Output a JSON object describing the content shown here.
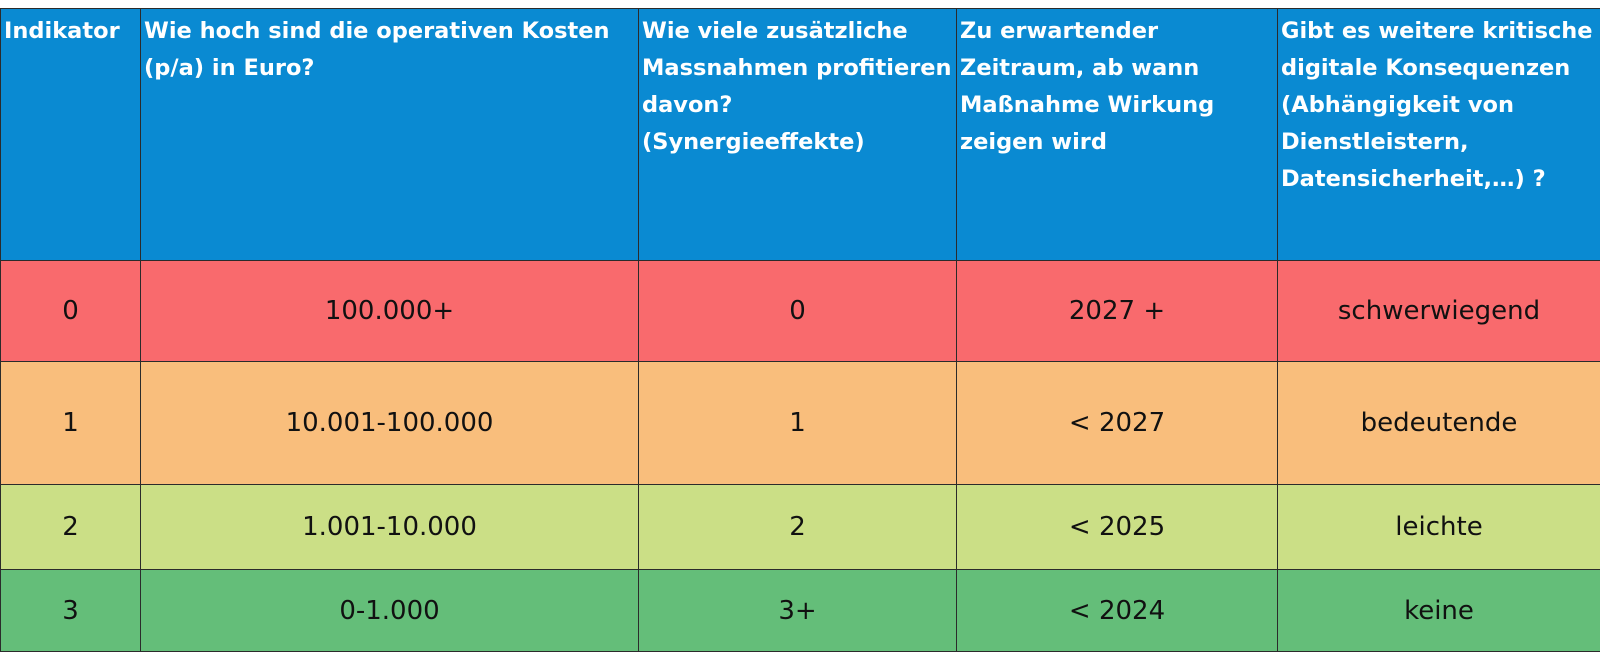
{
  "table": {
    "headers": [
      "Indikator",
      "Wie hoch sind die operativen Kosten (p/a) in Euro?",
      "Wie viele zusätzliche Massnahmen profitieren davon? (Synergieeffekte)",
      "Zu erwartender Zeitraum, ab wann Maßnahme Wirkung zeigen wird",
      "Gibt es weitere kritische digitale Konsequenzen (Abhängigkeit von Dienstleistern, Datensicherheit,…) ?"
    ],
    "rows": [
      {
        "indikator": "0",
        "kosten": "100.000+",
        "synergie": "0",
        "zeitraum": "2027 +",
        "konsequenzen": "schwerwiegend",
        "color": "#f96a6d"
      },
      {
        "indikator": "1",
        "kosten": "10.001-100.000",
        "synergie": "1",
        "zeitraum": "< 2027",
        "konsequenzen": "bedeutende",
        "color": "#f9be7c"
      },
      {
        "indikator": "2",
        "kosten": "1.001-10.000",
        "synergie": "2",
        "zeitraum": "< 2025",
        "konsequenzen": "leichte",
        "color": "#cbdf86"
      },
      {
        "indikator": "3",
        "kosten": "0-1.000",
        "synergie": "3+",
        "zeitraum": "< 2024",
        "konsequenzen": "keine",
        "color": "#64be79"
      }
    ],
    "header_color": "#0a8ad2"
  }
}
